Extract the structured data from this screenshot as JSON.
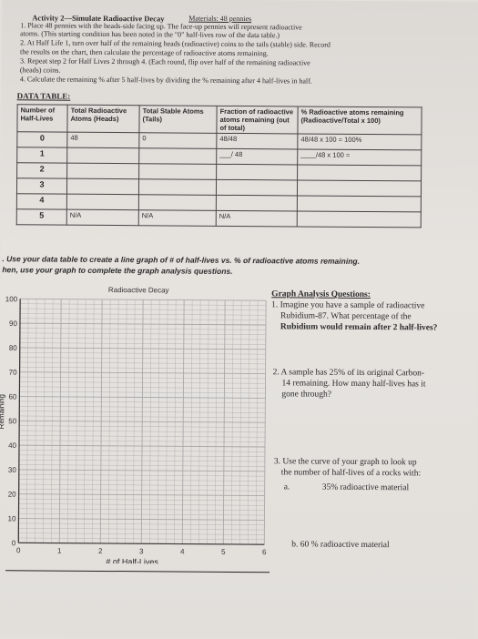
{
  "header": {
    "title": "Activity 2—Simulate Radioactive Decay",
    "materials": "Materials: 48 pennies",
    "lines": [
      "1. Place 48 pennies with the heads-side facing up. The face-up pennies will represent radioactive",
      "atoms. (This starting condition has been noted in the \"0\" half-lives row of the data table.)",
      "2. At Half Life 1, turn over half of the remaining heads (radioactive) coins to the tails (stable) side. Record",
      "the results on the chart, then calculate the percentage of radioactive atoms remaining.",
      "3. Repeat step 2 for Half Lives 2 through 4. (Each round, flip over half of the remaining radioactive",
      "(heads) coins.",
      "4. Calculate the remaining % after 5 half-lives by dividing the % remaining after 4 half-lives in half."
    ]
  },
  "table": {
    "label": "DATA TABLE:",
    "headers": [
      "Number of Half-Lives",
      "Total Radioactive Atoms (Heads)",
      "Total Stable Atoms (Tails)",
      "Fraction of radioactive atoms remaining (out of total)",
      "% Radioactive atoms remaining (Radioactive/Total x 100)"
    ],
    "rows": [
      [
        "0",
        "48",
        "0",
        "48/48",
        "48/48 x 100 = 100%"
      ],
      [
        "1",
        "",
        "",
        "___/ 48",
        "____/48 x 100 ="
      ],
      [
        "2",
        "",
        "",
        "",
        ""
      ],
      [
        "3",
        "",
        "",
        "",
        ""
      ],
      [
        "4",
        "",
        "",
        "",
        ""
      ],
      [
        "5",
        "N/A",
        "N/A",
        "N/A",
        ""
      ]
    ]
  },
  "instructions": {
    "line1": ". Use your data table to create a line graph of # of half-lives vs. % of radioactive atoms remaining.",
    "line2": "hen, use your graph to complete the graph analysis questions."
  },
  "chart_data": {
    "type": "line",
    "title": "Radioactive Decay",
    "xlabel": "# of Half-Lives",
    "ylabel": "Remaining",
    "x_ticks": [
      "0",
      "1",
      "2",
      "3",
      "4",
      "5",
      "6"
    ],
    "y_ticks": [
      "0",
      "10",
      "20",
      "30",
      "40",
      "50",
      "60",
      "70",
      "80",
      "90",
      "100"
    ],
    "xlim": [
      0,
      6
    ],
    "ylim": [
      0,
      100
    ],
    "grid": true,
    "series": []
  },
  "questions": {
    "heading": "Graph Analysis Questions:",
    "q1": [
      "1. Imagine you have a sample of radioactive",
      "Rubidium-87. What percentage of the",
      "Rubidium would remain after 2 half-lives?"
    ],
    "q2": [
      "2. A sample has 25% of its original Carbon-",
      "14 remaining. How many half-lives has it",
      "gone through?"
    ],
    "q3": [
      "3. Use the curve of your graph to look up",
      "the number of half-lives of a rocks with:"
    ],
    "q3a_letter": "a.",
    "q3a": "35% radioactive material",
    "q3b": "b.  60 % radioactive material"
  }
}
